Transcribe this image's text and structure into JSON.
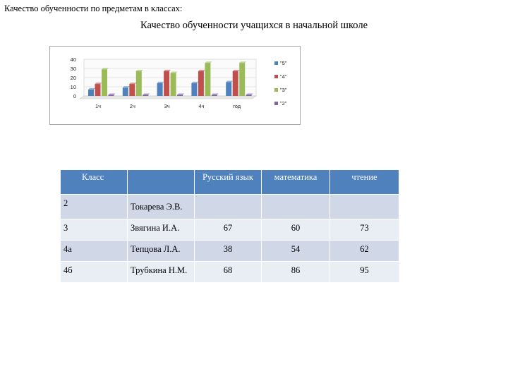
{
  "heading": "Качество обученности по предметам в  классах:",
  "chart_data": {
    "type": "bar",
    "title": "Качество обученности учащихся в начальной школе",
    "categories": [
      "1ч",
      "2ч",
      "3ч",
      "4ч",
      "год"
    ],
    "series": [
      {
        "name": "\"5\"",
        "values": [
          7,
          9,
          14,
          14,
          15
        ]
      },
      {
        "name": "\"4\"",
        "values": [
          13,
          13,
          27,
          27,
          27
        ]
      },
      {
        "name": "\"3\"",
        "values": [
          29,
          27,
          25,
          36,
          36
        ]
      },
      {
        "name": "\"2\"",
        "values": [
          1,
          1,
          1,
          1,
          1
        ]
      }
    ],
    "yticks": [
      "40",
      "30",
      "20",
      "10",
      "0"
    ],
    "ylim": [
      0,
      40
    ],
    "colors": [
      "#4f81bd",
      "#c0504d",
      "#9bbb59",
      "#8064a2"
    ],
    "legend": "right"
  },
  "table": {
    "headers": [
      "Класс",
      "",
      "Русский язык",
      "математика",
      "чтение"
    ],
    "rows": [
      [
        "2",
        "Токарева Э.В.",
        "",
        "",
        ""
      ],
      [
        "3",
        "Звягина И.А.",
        "67",
        "60",
        "73"
      ],
      [
        "4а",
        "Тепцова Л.А.",
        "38",
        "54",
        "62"
      ],
      [
        "4б",
        "Трубкина Н.М.",
        "68",
        "86",
        "95"
      ]
    ]
  }
}
